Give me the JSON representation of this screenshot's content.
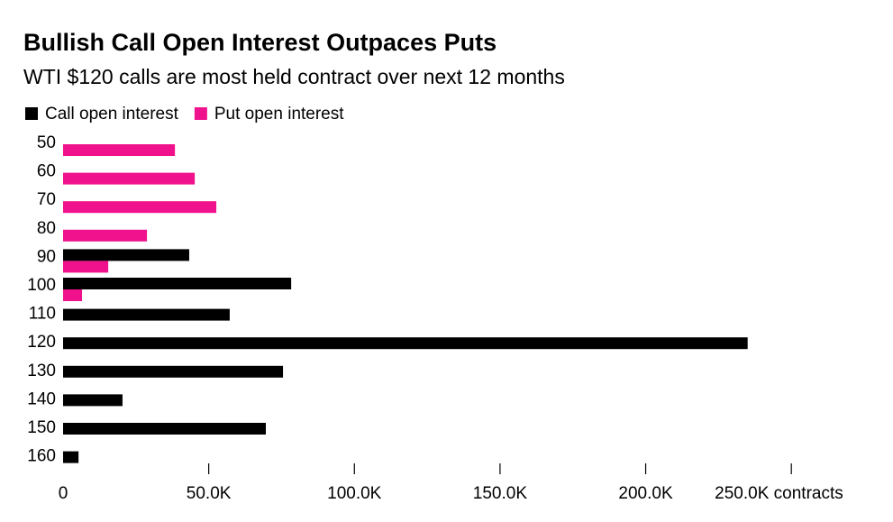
{
  "chart_data": {
    "type": "hbar",
    "title": "Bullish Call Open Interest Outpaces Puts",
    "subtitle": "WTI $120 calls are most held contract over next 12 months",
    "categories": [
      "50",
      "60",
      "70",
      "80",
      "90",
      "100",
      "110",
      "120",
      "130",
      "140",
      "150",
      "160"
    ],
    "series": [
      {
        "name": "Call open interest",
        "color": "#000000",
        "values": [
          null,
          null,
          null,
          null,
          43300,
          78300,
          57200,
          235000,
          75500,
          20400,
          69600,
          5300
        ]
      },
      {
        "name": "Put open interest",
        "color": "#f0128c",
        "values": [
          38400,
          45200,
          52600,
          28800,
          15500,
          6500,
          null,
          null,
          null,
          null,
          null,
          null
        ]
      }
    ],
    "xlim": [
      0,
      275000
    ],
    "xticks": [
      0,
      {
        "value": 50000,
        "label": "50.0K"
      },
      {
        "value": 100000,
        "label": "100.0K"
      },
      {
        "value": 150000,
        "label": "150.0K"
      },
      {
        "value": 200000,
        "label": "200.0K"
      },
      {
        "value": 250000,
        "label": "250.0K contracts"
      }
    ]
  }
}
